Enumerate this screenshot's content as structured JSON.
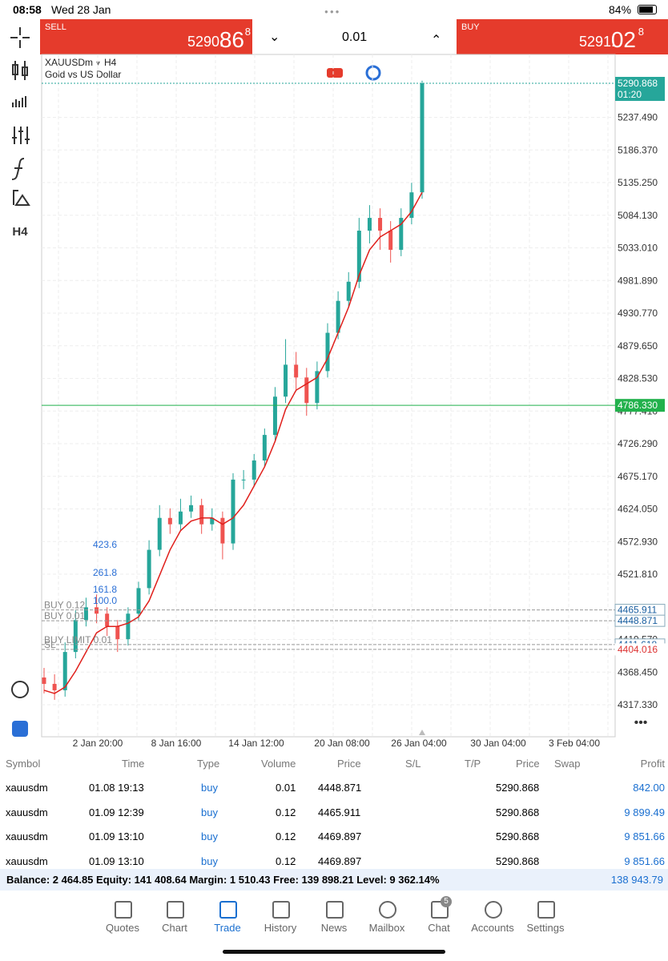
{
  "status_bar": {
    "time": "08:58",
    "date": "Wed 28 Jan",
    "battery": "84%"
  },
  "trade_panel": {
    "sell": {
      "label": "SELL",
      "price_main": "5290.",
      "price_big": "86",
      "price_sup": "8"
    },
    "volume": "0.01",
    "buy": {
      "label": "BUY",
      "price_main": "5291.",
      "price_big": "02",
      "price_sup": "8"
    }
  },
  "toolbar": {
    "timeframe": "H4"
  },
  "chart": {
    "symbol": "XAUUSDm",
    "timeframe": "H4",
    "description": "Gold vs US Dollar",
    "ylim": [
      4300,
      5320
    ],
    "yticks": [
      {
        "value": 5237.49,
        "label": "5237.490"
      },
      {
        "value": 5186.37,
        "label": "5186.370"
      },
      {
        "value": 5135.25,
        "label": "5135.250"
      },
      {
        "value": 5084.13,
        "label": "5084.130"
      },
      {
        "value": 5033.01,
        "label": "5033.010"
      },
      {
        "value": 4981.89,
        "label": "4981.890"
      },
      {
        "value": 4930.77,
        "label": "4930.770"
      },
      {
        "value": 4879.65,
        "label": "4879.650"
      },
      {
        "value": 4828.53,
        "label": "4828.530"
      },
      {
        "value": 4777.41,
        "label": "4777.410"
      },
      {
        "value": 4726.29,
        "label": "4726.290"
      },
      {
        "value": 4675.17,
        "label": "4675.170"
      },
      {
        "value": 4624.05,
        "label": "4624.050"
      },
      {
        "value": 4572.93,
        "label": "4572.930"
      },
      {
        "value": 4521.81,
        "label": "4521.810"
      },
      {
        "value": 4419.57,
        "label": "4419.570"
      },
      {
        "value": 4368.45,
        "label": "4368.450"
      },
      {
        "value": 4317.33,
        "label": "4317.330"
      }
    ],
    "xlabels": [
      "2 Jan 20:00",
      "8 Jan 16:00",
      "14 Jan 12:00",
      "20 Jan 08:00",
      "26 Jan 04:00",
      "30 Jan 04:00",
      "3 Feb 04:00"
    ],
    "candles": {
      "open": [
        4360,
        4350,
        4340,
        4400,
        4450,
        4470,
        4460,
        4440,
        4420,
        4460,
        4500,
        4560,
        4610,
        4600,
        4620,
        4630,
        4600,
        4610,
        4570,
        4670,
        4670,
        4700,
        4740,
        4800,
        4850,
        4830,
        4790,
        4840,
        4900,
        4950,
        4980,
        5060,
        5080,
        5060,
        5030,
        5080,
        5120
      ],
      "high": [
        4375,
        4365,
        4415,
        4465,
        4485,
        4490,
        4470,
        4450,
        4470,
        4510,
        4575,
        4630,
        4625,
        4640,
        4645,
        4640,
        4625,
        4620,
        4680,
        4685,
        4710,
        4750,
        4815,
        4890,
        4870,
        4845,
        4855,
        4915,
        4965,
        4995,
        5080,
        5100,
        5095,
        5075,
        5095,
        5135,
        5295
      ],
      "low": [
        4335,
        4325,
        4330,
        4390,
        4440,
        4445,
        4425,
        4400,
        4410,
        4450,
        4490,
        4550,
        4585,
        4590,
        4610,
        4585,
        4590,
        4545,
        4560,
        4655,
        4660,
        4690,
        4730,
        4790,
        4810,
        4770,
        4780,
        4830,
        4890,
        4940,
        4970,
        5040,
        5030,
        5010,
        5020,
        5070,
        5110
      ],
      "close": [
        4350,
        4340,
        4400,
        4450,
        4470,
        4460,
        4440,
        4420,
        4460,
        4500,
        4560,
        4610,
        4600,
        4620,
        4630,
        4600,
        4610,
        4570,
        4670,
        4670,
        4700,
        4740,
        4800,
        4850,
        4830,
        4790,
        4840,
        4900,
        4950,
        4980,
        5060,
        5080,
        5060,
        5030,
        5080,
        5120,
        5290.868
      ]
    },
    "ma": {
      "color": "#e0201c",
      "values": [
        4340,
        4335,
        4345,
        4370,
        4400,
        4430,
        4440,
        4440,
        4445,
        4455,
        4480,
        4520,
        4560,
        4590,
        4605,
        4610,
        4610,
        4600,
        4610,
        4630,
        4660,
        4690,
        4730,
        4780,
        4810,
        4820,
        4830,
        4860,
        4900,
        4940,
        4990,
        5030,
        5050,
        5060,
        5070,
        5090,
        5120
      ]
    },
    "current": {
      "value": 5290.868,
      "label": "5290.868",
      "time": "01:20"
    },
    "green_line": {
      "value": 4786.33,
      "label": "4786.330"
    },
    "orders": [
      {
        "text": "BUY 0.12",
        "value": 4465.911,
        "label": "4465.911"
      },
      {
        "text": "BUY 0.01",
        "value": 4448.871,
        "label": "4448.871"
      },
      {
        "text": "BUY LIMIT 0.01",
        "value": 4411.618,
        "label": "4411.618"
      },
      {
        "text": "SL",
        "value": 4404.016,
        "label": "4404.016"
      }
    ],
    "fib_labels": [
      "423.6",
      "261.8",
      "161.8",
      "100.0"
    ]
  },
  "table": {
    "headers": [
      "Symbol",
      "Time",
      "Type",
      "Volume",
      "Price",
      "S/L",
      "T/P",
      "Price",
      "Swap",
      "Profit"
    ],
    "rows": [
      [
        "xauusdm",
        "01.08 19:13",
        "buy",
        "0.01",
        "4448.871",
        "5290.868",
        "842.00"
      ],
      [
        "xauusdm",
        "01.09 12:39",
        "buy",
        "0.12",
        "4465.911",
        "5290.868",
        "9 899.49"
      ],
      [
        "xauusdm",
        "01.09 13:10",
        "buy",
        "0.12",
        "4469.897",
        "5290.868",
        "9 851.66"
      ],
      [
        "xauusdm",
        "01.09 13:10",
        "buy",
        "0.12",
        "4469.897",
        "5290.868",
        "9 851.66"
      ]
    ],
    "summary": "Balance: 2 464.85 Equity: 141 408.64 Margin: 1 510.43 Free: 139 898.21 Level: 9 362.14%",
    "total": "138 943.79"
  },
  "tabs": [
    "Quotes",
    "Chart",
    "Trade",
    "History",
    "News",
    "Mailbox",
    "Chat",
    "Accounts",
    "Settings"
  ],
  "chat_badge": "5"
}
